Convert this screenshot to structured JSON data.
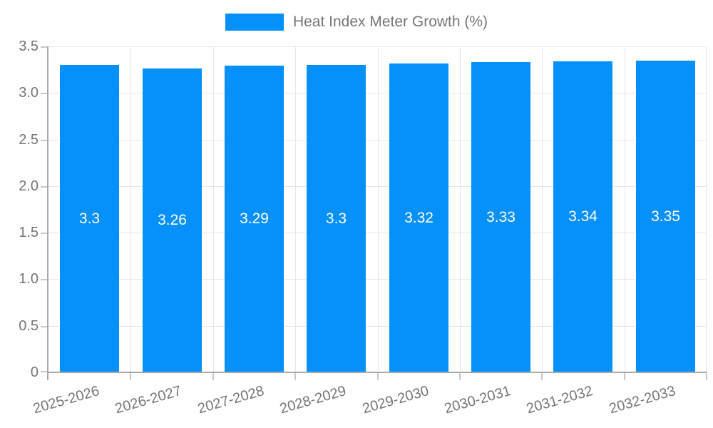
{
  "legend": {
    "label": "Heat Index Meter Growth (%)"
  },
  "chart_data": {
    "type": "bar",
    "title": "Heat Index Meter Growth (%)",
    "categories": [
      "2025-2026",
      "2026-2027",
      "2027-2028",
      "2028-2029",
      "2029-2030",
      "2030-2031",
      "2031-2032",
      "2032-2033"
    ],
    "values": [
      3.3,
      3.26,
      3.29,
      3.3,
      3.32,
      3.33,
      3.34,
      3.35
    ],
    "value_labels": [
      "3.3",
      "3.26",
      "3.29",
      "3.3",
      "3.32",
      "3.33",
      "3.34",
      "3.35"
    ],
    "xlabel": "",
    "ylabel": "",
    "ylim": [
      0,
      3.5
    ],
    "ytick_step": 0.5,
    "ytick_labels": [
      "0",
      "0.5",
      "1.0",
      "1.5",
      "2.0",
      "2.5",
      "3.0",
      "3.5"
    ],
    "grid": true,
    "legend_position": "top",
    "colors": {
      "bar": "#0690fa",
      "bar_value_text": "#ffffff",
      "axis_line": "#a9a9a9",
      "gridline": "#e6e6e6",
      "outside_tick": "#c9c9c9",
      "tick_text": "#757575"
    }
  }
}
